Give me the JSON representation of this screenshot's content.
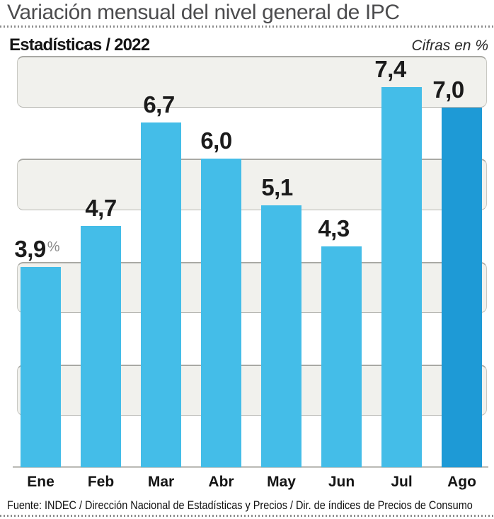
{
  "header": {
    "title": "Variación mensual del nivel general de IPC",
    "section": "Estadísticas / 2022",
    "units_note": "Cifras en %"
  },
  "footer": {
    "source": "Fuente: INDEC / Dirección Nacional de Estadísticas y Precios / Dir. de índices de Precios de Consumo"
  },
  "chart_data": {
    "type": "bar",
    "title": "Variación mensual del nivel general de IPC",
    "subtitle": "Estadísticas / 2022",
    "units": "Cifras en %",
    "categories": [
      "Ene",
      "Feb",
      "Mar",
      "Abr",
      "May",
      "Jun",
      "Jul",
      "Ago"
    ],
    "values": [
      3.9,
      4.7,
      6.7,
      6.0,
      5.1,
      4.3,
      7.4,
      7.0
    ],
    "value_labels": [
      "3,9",
      "4,7",
      "6,7",
      "6,0",
      "5,1",
      "4,3",
      "7,4",
      "7,0"
    ],
    "first_value_suffix": "%",
    "xlabel": "",
    "ylabel": "",
    "ylim": [
      0,
      8
    ],
    "grid": "alternating horizontal one-unit bands, no y-axis tick labels",
    "legend": "none",
    "highlight_index": 7,
    "colors": {
      "bar": "#44bde8",
      "bar_highlight": "#1e9ad6",
      "band": "#f1f1ed",
      "band_border": "#a9a9a4",
      "baseline": "#c9c9c5",
      "title_text": "#4c4c4e",
      "label_text": "#1b1b1b",
      "suffix_text": "#8a8a8a"
    }
  }
}
